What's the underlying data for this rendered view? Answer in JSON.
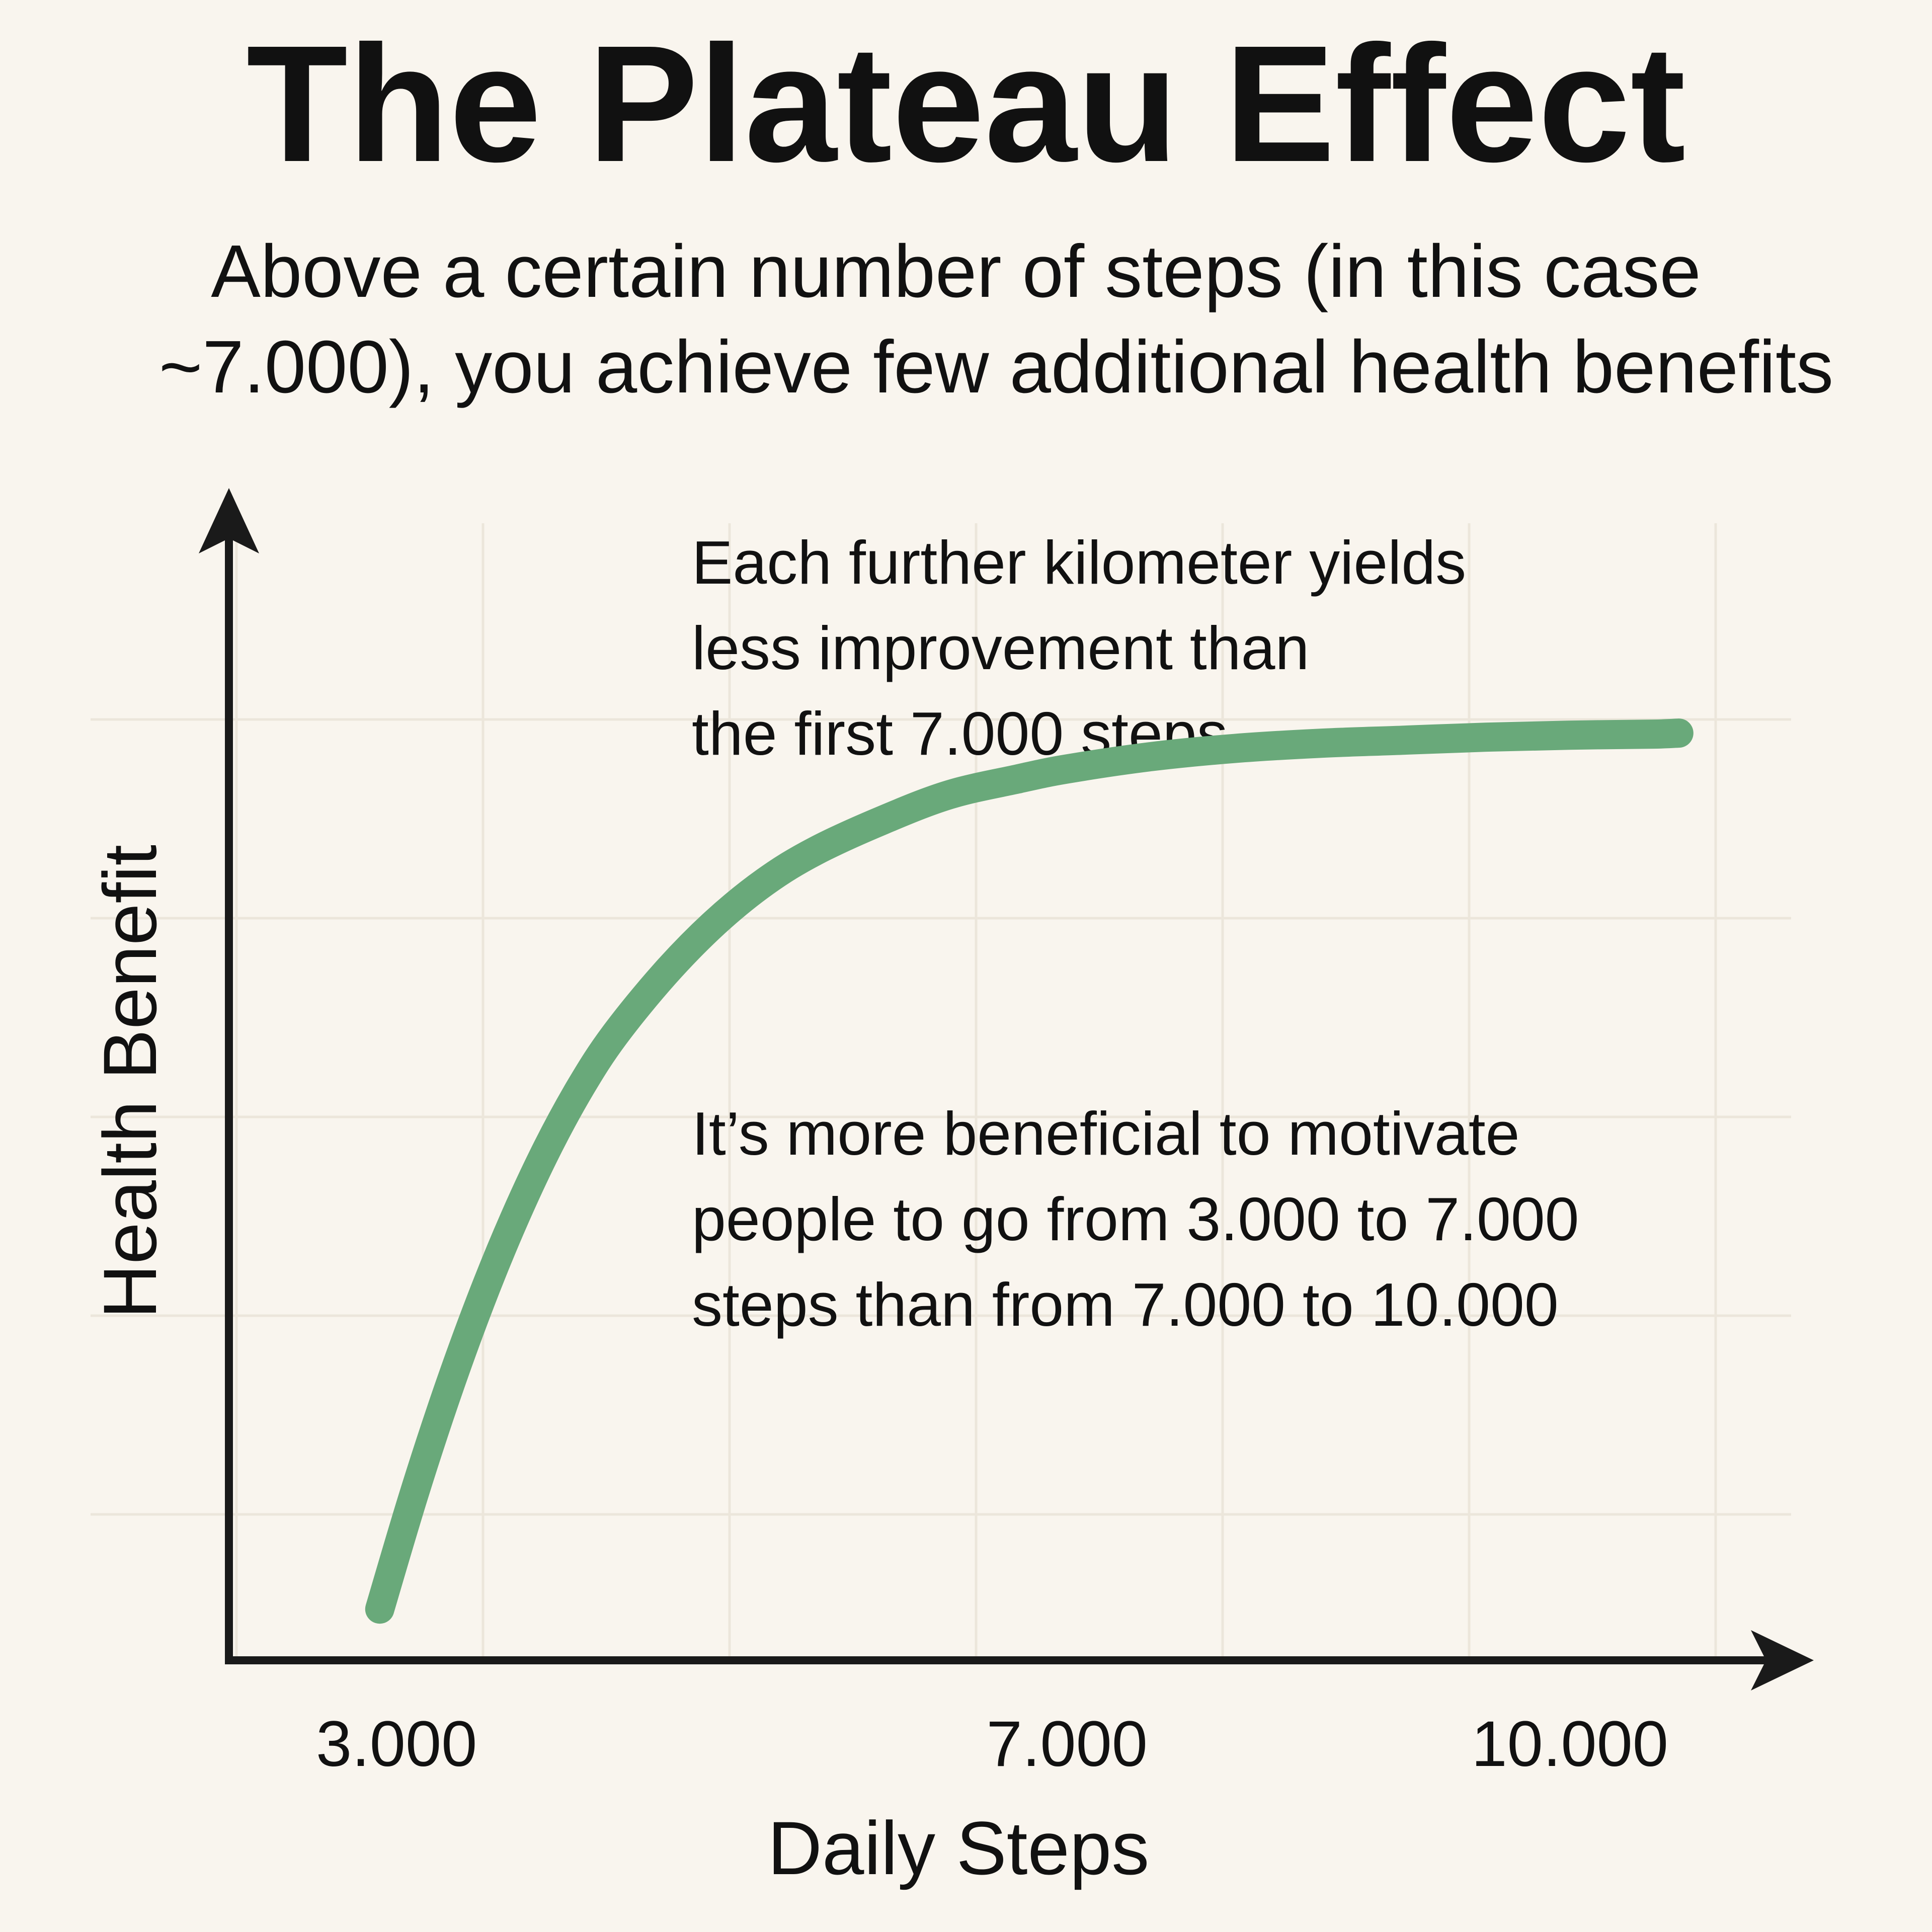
{
  "chart_data": {
    "type": "line",
    "title": "The Plateau Effect",
    "subtitle_lines": [
      "Above a certain number of steps (in this case",
      "~7.000), you achieve few additional health benefits"
    ],
    "xlabel": "Daily Steps",
    "ylabel": "Health Benefit",
    "x_ticks": [
      {
        "value": 3000,
        "label": "3.000"
      },
      {
        "value": 7000,
        "label": "7.000"
      },
      {
        "value": 10000,
        "label": "10.000"
      }
    ],
    "xlim": [
      2000,
      11200
    ],
    "ylim": [
      0,
      1.1
    ],
    "grid": true,
    "series": [
      {
        "color": "#69a97a",
        "points": [
          [
            2900,
            0.05
          ],
          [
            3100,
            0.16
          ],
          [
            3300,
            0.26
          ],
          [
            3500,
            0.35
          ],
          [
            3700,
            0.43
          ],
          [
            3900,
            0.5
          ],
          [
            4100,
            0.56
          ],
          [
            4300,
            0.61
          ],
          [
            4600,
            0.67
          ],
          [
            4900,
            0.72
          ],
          [
            5200,
            0.76
          ],
          [
            5500,
            0.79
          ],
          [
            5900,
            0.82
          ],
          [
            6300,
            0.845
          ],
          [
            6700,
            0.86
          ],
          [
            7000,
            0.87
          ],
          [
            7500,
            0.882
          ],
          [
            8000,
            0.89
          ],
          [
            8500,
            0.895
          ],
          [
            9000,
            0.898
          ],
          [
            9500,
            0.901
          ],
          [
            10000,
            0.903
          ],
          [
            10500,
            0.904
          ],
          [
            10650,
            0.905
          ]
        ]
      }
    ],
    "annotations": [
      {
        "lines": [
          "Each further kilometer yields",
          "less improvement than",
          "the first 7.000 steps"
        ]
      },
      {
        "lines": [
          "It’s more beneficial to motivate",
          "people to go from 3.000 to 7.000",
          "steps than from 7.000 to 10.000"
        ]
      }
    ]
  }
}
